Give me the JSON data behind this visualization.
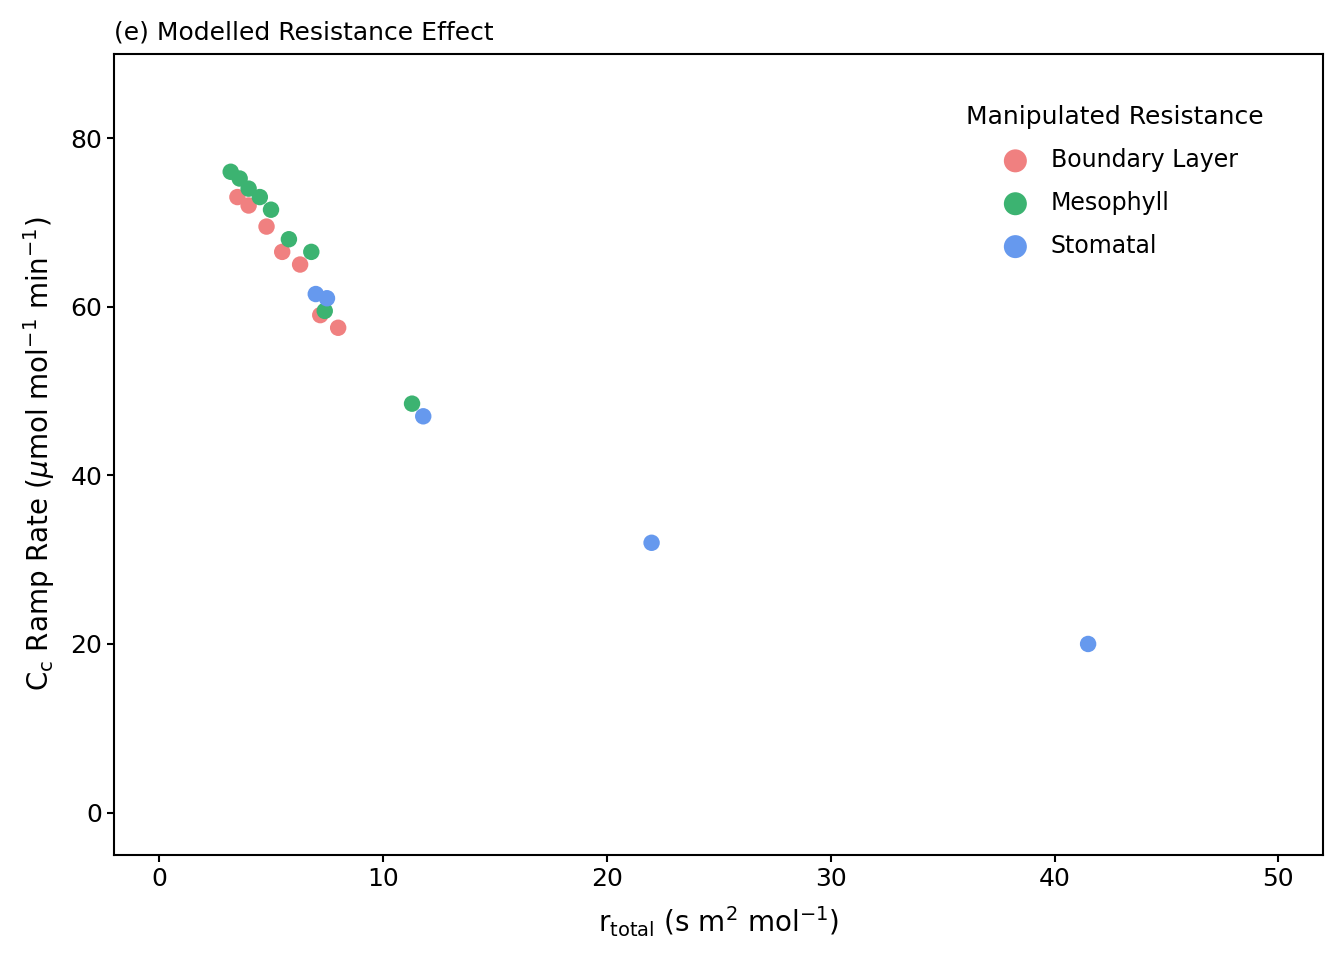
{
  "title_label": "(e) Modelled Resistance Effect",
  "title_bold_part": "(e)",
  "xlim": [
    -2,
    52
  ],
  "ylim": [
    -5,
    90
  ],
  "xticks": [
    0,
    10,
    20,
    30,
    40,
    50
  ],
  "yticks": [
    0,
    20,
    40,
    60,
    80
  ],
  "legend_title": "Manipulated Resistance",
  "series": [
    {
      "label": "Boundary Layer",
      "color": "#F08080",
      "x": [
        3.5,
        4.0,
        4.8,
        5.5,
        6.3,
        7.2,
        8.0
      ],
      "y": [
        73.0,
        72.0,
        69.5,
        66.5,
        65.0,
        59.0,
        57.5
      ]
    },
    {
      "label": "Mesophyll",
      "color": "#3CB371",
      "x": [
        3.2,
        3.6,
        4.0,
        4.5,
        5.0,
        5.8,
        6.8,
        7.4,
        11.3
      ],
      "y": [
        76.0,
        75.2,
        74.0,
        73.0,
        71.5,
        68.0,
        66.5,
        59.5,
        48.5
      ]
    },
    {
      "label": "Stomatal",
      "color": "#6699EE",
      "x": [
        7.0,
        7.5,
        11.8,
        22.0,
        41.5
      ],
      "y": [
        61.5,
        61.0,
        47.0,
        32.0,
        20.0
      ]
    }
  ],
  "marker_size": 140,
  "background_color": "#ffffff",
  "spine_color": "#000000",
  "tick_labelsize": 18,
  "axis_labelsize": 20,
  "title_fontsize": 18,
  "legend_title_fontsize": 18,
  "legend_fontsize": 17
}
